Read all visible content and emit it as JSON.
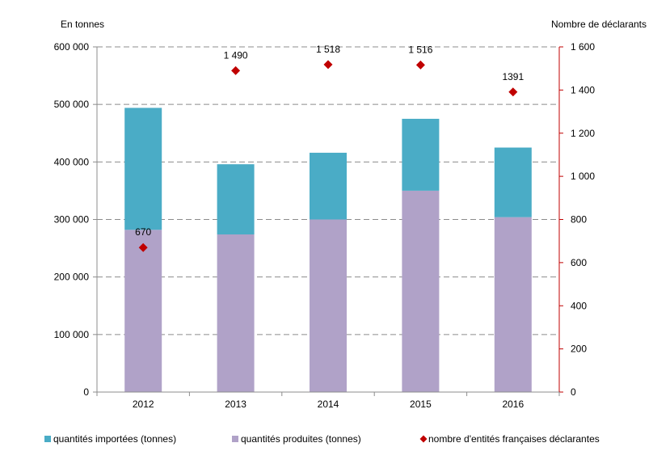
{
  "chart_data": {
    "type": "bar",
    "stacked": true,
    "categories": [
      "2012",
      "2013",
      "2014",
      "2015",
      "2016"
    ],
    "series": [
      {
        "name": "quantités produites (tonnes)",
        "axis": "left",
        "color": "#b0a2c8",
        "values": [
          282000,
          274000,
          300000,
          350000,
          304000
        ]
      },
      {
        "name": "quantités importées (tonnes)",
        "axis": "left",
        "color": "#4aacc6",
        "values": [
          212000,
          122000,
          116000,
          125000,
          121000
        ]
      },
      {
        "name": "nombre d'entités françaises déclarantes",
        "axis": "right",
        "type": "scatter",
        "color": "#c00000",
        "values": [
          670,
          1490,
          1518,
          1516,
          1391
        ],
        "labels": [
          "670",
          "1 490",
          "1 518",
          "1 516",
          "1391"
        ]
      }
    ],
    "ylabel_left": "En tonnes",
    "ylabel_right": "Nombre de déclarants",
    "ylim_left": [
      0,
      600000
    ],
    "ylim_right": [
      0,
      1600
    ],
    "yticks_left": [
      "0",
      "100 000",
      "200 000",
      "300 000",
      "400 000",
      "500 000",
      "600 000"
    ],
    "yticks_right": [
      "0",
      "200",
      "400",
      "600",
      "800",
      "1 000",
      "1 200",
      "1 400",
      "1 600"
    ],
    "grid": true,
    "legend": {
      "position": "bottom",
      "items": [
        {
          "label": "quantités importées (tonnes)",
          "color": "#4aacc6",
          "marker": "square"
        },
        {
          "label": "quantités produites (tonnes)",
          "color": "#b0a2c8",
          "marker": "square"
        },
        {
          "label": "nombre d'entités françaises déclarantes",
          "color": "#c00000",
          "marker": "diamond"
        }
      ]
    }
  }
}
